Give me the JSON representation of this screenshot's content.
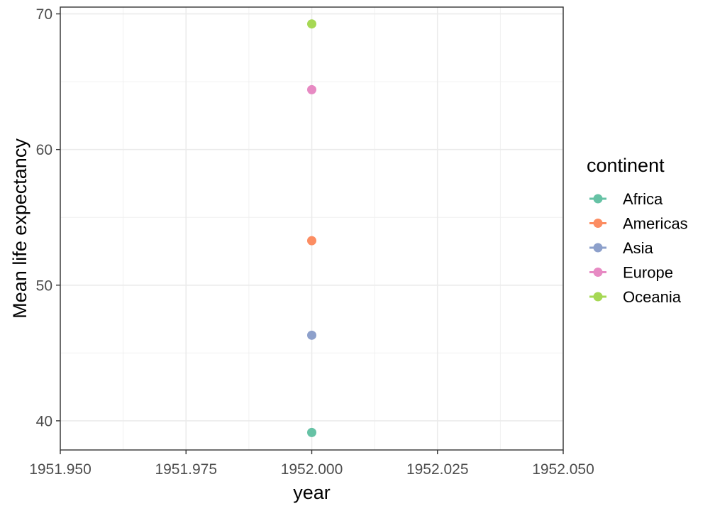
{
  "chart_data": {
    "type": "scatter",
    "title": "",
    "xlabel": "year",
    "ylabel": "Mean life expectancy",
    "xlim": [
      1951.95,
      1952.05
    ],
    "ylim": [
      37.85,
      70.5
    ],
    "x_ticks": [
      "1951.950",
      "1951.975",
      "1952.000",
      "1952.025",
      "1952.050"
    ],
    "x_tick_values": [
      1951.95,
      1951.975,
      1952.0,
      1952.025,
      1952.05
    ],
    "x_minor_values": [
      1951.9625,
      1951.9875,
      1952.0125,
      1952.0375
    ],
    "y_ticks": [
      "40",
      "50",
      "60",
      "70"
    ],
    "y_tick_values": [
      40,
      50,
      60,
      70
    ],
    "y_minor_values": [
      45,
      55,
      65
    ],
    "grid": true,
    "legend": {
      "title": "continent",
      "position": "right"
    },
    "series": [
      {
        "name": "Africa",
        "color": "#66C2A5",
        "points": [
          {
            "x": 1952.0,
            "y": 39.14
          }
        ]
      },
      {
        "name": "Americas",
        "color": "#FC8D62",
        "points": [
          {
            "x": 1952.0,
            "y": 53.28
          }
        ]
      },
      {
        "name": "Asia",
        "color": "#8DA0CB",
        "points": [
          {
            "x": 1952.0,
            "y": 46.31
          }
        ]
      },
      {
        "name": "Europe",
        "color": "#E78AC3",
        "points": [
          {
            "x": 1952.0,
            "y": 64.41
          }
        ]
      },
      {
        "name": "Oceania",
        "color": "#A6D854",
        "points": [
          {
            "x": 1952.0,
            "y": 69.26
          }
        ]
      }
    ]
  }
}
